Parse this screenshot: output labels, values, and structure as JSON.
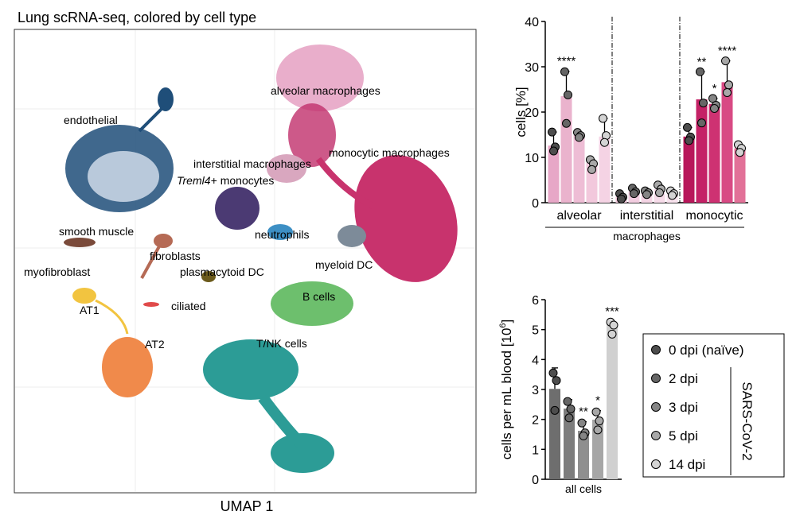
{
  "umap": {
    "title": "Lung scRNA-seq, colored by cell type",
    "x_label": "UMAP 1",
    "labels": [
      "endothelial",
      "alveolar macrophages",
      "monocytic macrophages",
      "interstitial macrophages",
      {
        "italic": "Treml4+",
        "text": "monocytes"
      },
      "smooth muscle",
      "fibroblasts",
      "neutrophils",
      "plasmacytoid DC",
      "myeloid DC",
      "myofibroblast",
      "AT1",
      "ciliated",
      "B cells",
      "AT2",
      "T/NK cells"
    ]
  },
  "chart_data": [
    {
      "type": "bar",
      "y_label": "cells [%]",
      "categories": [
        "alveolar",
        "interstitial",
        "monocytic"
      ],
      "group_label": "macrophages",
      "ylim": [
        0,
        40
      ],
      "yticks": [
        0,
        10,
        20,
        30,
        40
      ],
      "series": [
        {
          "colors": [
            "#e7a7c7",
            "#f0c6da",
            "#b8175a"
          ],
          "values": [
            12.6,
            1.3,
            14.6
          ],
          "errors": [
            3.0,
            0.7,
            2.0
          ],
          "points": [
            [
              15.6,
              12.3,
              11.4
            ],
            [
              2.0,
              1.2,
              0.8
            ],
            [
              16.6,
              14.5,
              13.7
            ]
          ],
          "significance": [
            null,
            null,
            null
          ]
        },
        {
          "colors": [
            "#eab3cd",
            "#f2cde0",
            "#c42166"
          ],
          "values": [
            23.5,
            2.5,
            22.8
          ],
          "errors": [
            5.5,
            0.7,
            6.1
          ],
          "points": [
            [
              28.9,
              23.8,
              17.5
            ],
            [
              3.2,
              2.4,
              2.0
            ],
            [
              28.9,
              22.0,
              17.6
            ]
          ],
          "significance": [
            "****",
            null,
            "**"
          ]
        },
        {
          "colors": [
            "#eebdd5",
            "#f4d4e4",
            "#ce3272"
          ],
          "values": [
            14.9,
            2.2,
            21.8
          ],
          "errors": [
            0.6,
            0.4,
            1.2
          ],
          "points": [
            [
              15.5,
              14.8,
              14.4
            ],
            [
              2.6,
              2.2,
              1.8
            ],
            [
              23.0,
              21.5,
              20.8
            ]
          ],
          "significance": [
            null,
            null,
            "*"
          ]
        },
        {
          "colors": [
            "#f2c8dc",
            "#f6dbe9",
            "#d84a84"
          ],
          "values": [
            8.8,
            3.0,
            26.6
          ],
          "errors": [
            0.7,
            0.9,
            4.7
          ],
          "points": [
            [
              9.5,
              8.6,
              7.3
            ],
            [
              3.9,
              3.0,
              2.2
            ],
            [
              31.3,
              26.0,
              24.3
            ]
          ],
          "significance": [
            null,
            null,
            "****"
          ]
        },
        {
          "colors": [
            "#f5d3e4",
            "#f8e2ed",
            "#e27198"
          ],
          "values": [
            14.6,
            2.0,
            12.0
          ],
          "errors": [
            4.0,
            0.6,
            0.8
          ],
          "points": [
            [
              18.6,
              14.8,
              13.3
            ],
            [
              2.6,
              2.0,
              1.6
            ],
            [
              12.8,
              12.0,
              11.1
            ]
          ],
          "significance": [
            null,
            null,
            null
          ]
        }
      ]
    },
    {
      "type": "bar",
      "y_label": {
        "text": "cells per mL blood [10",
        "superscript": "6",
        "suffix": "]"
      },
      "categories": [
        "all cells"
      ],
      "ylim": [
        0,
        6
      ],
      "yticks": [
        0,
        1,
        2,
        3,
        4,
        5,
        6
      ],
      "series": [
        {
          "colors": [
            "#6e6e6e"
          ],
          "values": [
            3.02
          ],
          "errors": [
            0.7
          ],
          "points": [
            [
              3.55,
              3.3,
              2.3
            ]
          ],
          "significance": [
            null
          ]
        },
        {
          "colors": [
            "#7d7d7d"
          ],
          "values": [
            2.36
          ],
          "errors": [
            0.3
          ],
          "points": [
            [
              2.6,
              2.35,
              2.05
            ]
          ],
          "significance": [
            null
          ]
        },
        {
          "colors": [
            "#8f8f8f"
          ],
          "values": [
            1.62
          ],
          "errors": [
            0.3
          ],
          "points": [
            [
              1.88,
              1.55,
              1.45
            ]
          ],
          "significance": [
            "**"
          ]
        },
        {
          "colors": [
            "#a6a6a6"
          ],
          "values": [
            1.99
          ],
          "errors": [
            0.3
          ],
          "points": [
            [
              2.25,
              1.95,
              1.65
            ]
          ],
          "significance": [
            "*"
          ]
        },
        {
          "colors": [
            "#d0d0d0"
          ],
          "values": [
            5.17
          ],
          "errors": [
            0.1
          ],
          "points": [
            [
              5.25,
              5.15,
              4.85
            ]
          ],
          "significance": [
            "***"
          ]
        }
      ]
    }
  ],
  "legend": {
    "entries": [
      "0 dpi (naïve)",
      "2 dpi",
      "3 dpi",
      "5 dpi",
      "14 dpi"
    ],
    "colors": [
      "#4d4d4d",
      "#666666",
      "#858585",
      "#a8a8a8",
      "#d4d4d4"
    ],
    "group_label": "SARS-CoV-2"
  }
}
